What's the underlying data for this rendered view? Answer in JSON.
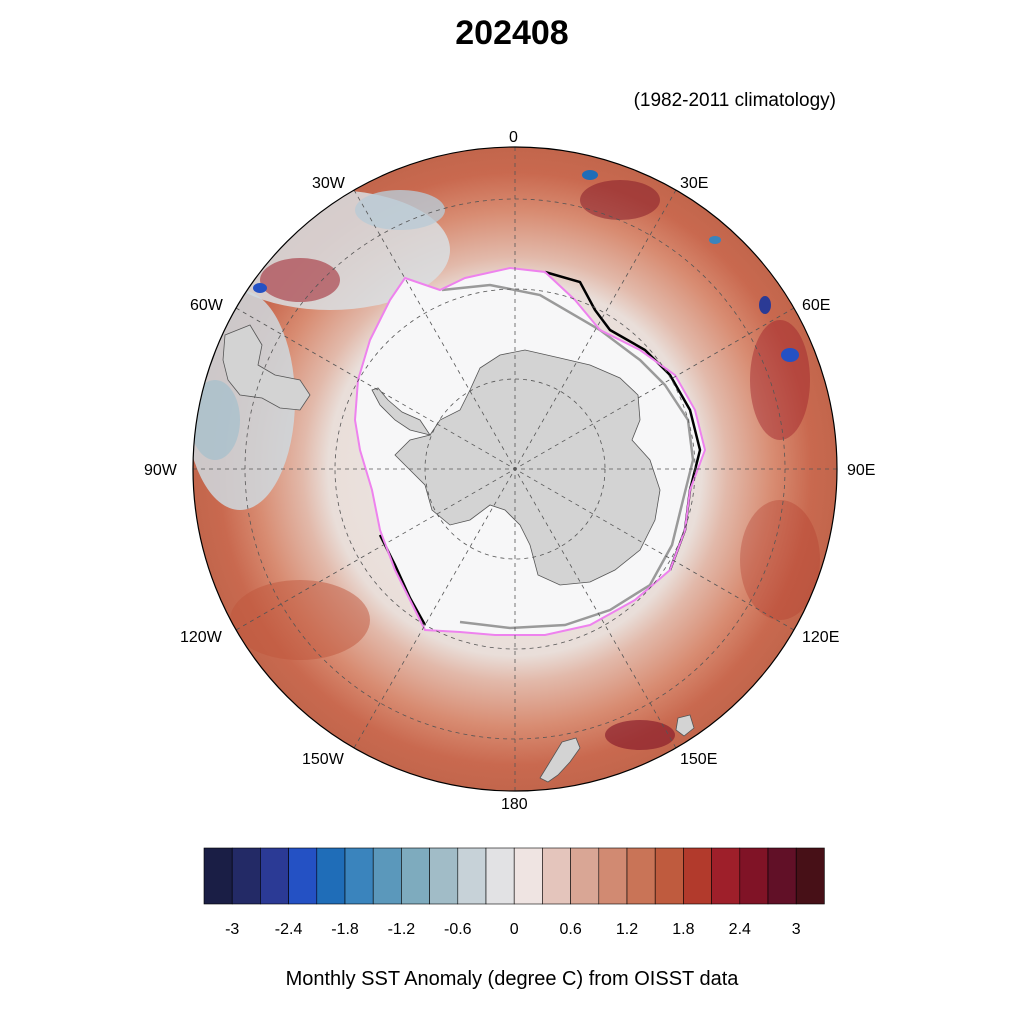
{
  "title": "202408",
  "subtitle": "(1982-2011 climatology)",
  "caption": "Monthly SST Anomaly (degree C) from OISST data",
  "longitude_labels": {
    "lon_0": "0",
    "lon_30e": "30E",
    "lon_60e": "60E",
    "lon_90e": "90E",
    "lon_120e": "120E",
    "lon_150e": "150E",
    "lon_180": "180",
    "lon_150w": "150W",
    "lon_120w": "120W",
    "lon_90w": "90W",
    "lon_60w": "60W",
    "lon_30w": "30W"
  },
  "colorbar": {
    "colors": [
      "#1a1e45",
      "#232a66",
      "#2b3a95",
      "#2451c4",
      "#1f6db8",
      "#3a84bd",
      "#5b98bb",
      "#7eabbe",
      "#a1bcc7",
      "#c7d2d8",
      "#e2e2e4",
      "#efe4e2",
      "#e4c5bc",
      "#d9a695",
      "#d18a72",
      "#c97457",
      "#bf5b3e",
      "#b23a2c",
      "#9e1f2a",
      "#801326",
      "#611027",
      "#471017"
    ],
    "tick_labels": [
      "-3",
      "-2.4",
      "-1.8",
      "-1.2",
      "-0.6",
      "0",
      "0.6",
      "1.2",
      "1.8",
      "2.4",
      "3"
    ]
  },
  "legend_colors": {
    "land": "#d3d3d3",
    "ice": "#f7f7f8",
    "ice_edge_current": "#ee82ee",
    "ice_edge_climatology": "#000000",
    "ice_edge_alt": "#9a9a9a"
  }
}
